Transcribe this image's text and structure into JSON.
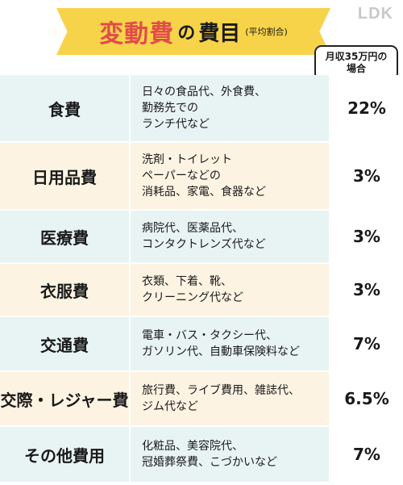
{
  "header": {
    "title_main": "変動費",
    "title_connector": "の",
    "title_tail": "費目",
    "title_note": "(平均割合)",
    "brand": "LDK"
  },
  "bubble": {
    "line1": "月収35万円の",
    "line2": "場合"
  },
  "rows": [
    {
      "name": "食費",
      "desc": "日々の食品代、外食費、\n勤務先での\nランチ代など",
      "value": "22%"
    },
    {
      "name": "日用品費",
      "desc": "洗剤・トイレット\nペーパーなどの\n消耗品、家電、食器など",
      "value": "3%"
    },
    {
      "name": "医療費",
      "desc": "病院代、医薬品代、\nコンタクトレンズ代など",
      "value": "3%"
    },
    {
      "name": "衣服費",
      "desc": "衣類、下着、靴、\nクリーニング代など",
      "value": "3%"
    },
    {
      "name": "交通費",
      "desc": "電車・バス・タクシー代、\nガソリン代、自動車保険料など",
      "value": "7%"
    },
    {
      "name": "交際・レジャー費",
      "desc": "旅行費、ライブ費用、雑誌代、\nジム代など",
      "value": "6.5%"
    },
    {
      "name": "その他費用",
      "desc": "化粧品、美容院代、\n冠婚葬祭費、こづかいなど",
      "value": "7%"
    }
  ]
}
